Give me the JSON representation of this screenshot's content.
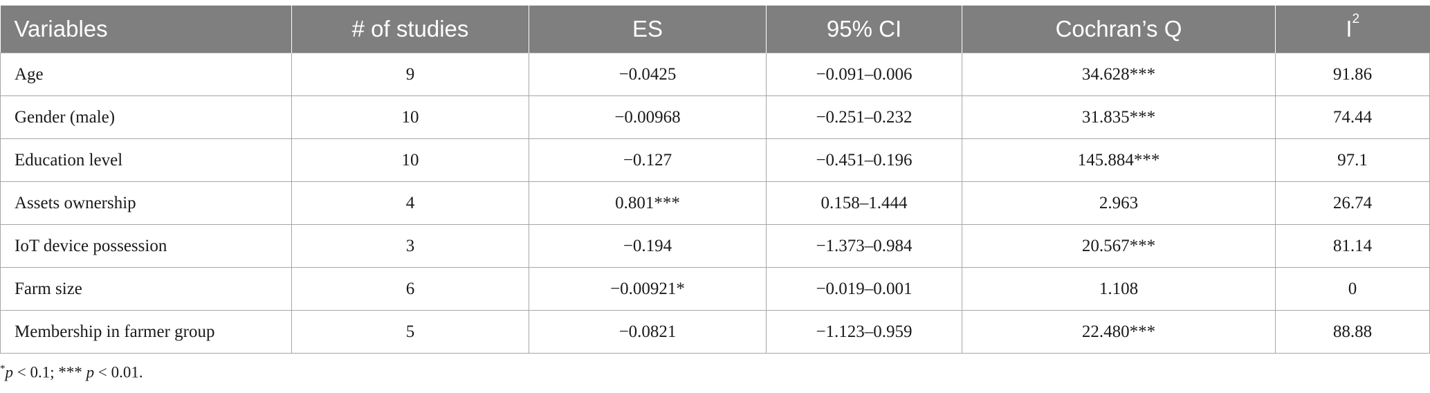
{
  "table": {
    "headers": [
      "Variables",
      "# of studies",
      "ES",
      "95% CI",
      "Cochran’s Q",
      "I",
      "2"
    ],
    "rows": [
      [
        "Age",
        "9",
        "−0.0425",
        "−0.091–0.006",
        "34.628***",
        "91.86"
      ],
      [
        "Gender (male)",
        "10",
        "−0.00968",
        "−0.251–0.232",
        "31.835***",
        "74.44"
      ],
      [
        "Education level",
        "10",
        "−0.127",
        "−0.451–0.196",
        "145.884***",
        "97.1"
      ],
      [
        "Assets ownership",
        "4",
        "0.801***",
        "0.158–1.444",
        "2.963",
        "26.74"
      ],
      [
        "IoT device possession",
        "3",
        "−0.194",
        "−1.373–0.984",
        "20.567***",
        "81.14"
      ],
      [
        "Farm size",
        "6",
        "−0.00921*",
        "−0.019–0.001",
        "1.108",
        "0"
      ],
      [
        "Membership in farmer group",
        "5",
        "−0.0821",
        "−1.123–0.959",
        "22.480***",
        "88.88"
      ]
    ]
  },
  "footnote": {
    "mark1": "*",
    "p1": "p",
    "text1": " < 0.1; *** ",
    "p2": "p",
    "text2": " < 0.01."
  }
}
